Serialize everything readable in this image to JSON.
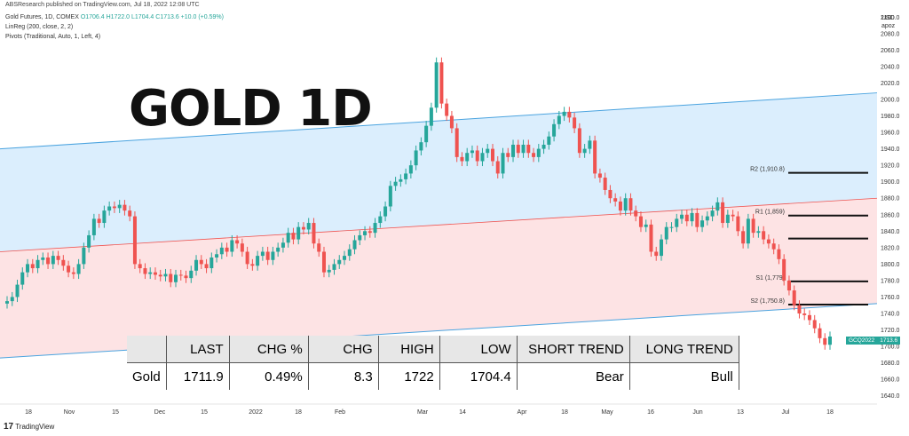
{
  "header": {
    "published": "ABSResearch published on TradingView.com, Jul 18, 2022 12:08 UTC"
  },
  "legend": {
    "symbol": "Gold Futures, 1D, COMEX",
    "ohlc": "O1706.4 H1722.0 L1704.4 C1713.6 +10.0 (+0.59%)",
    "linreg": "LinReg (200, close, 2, 2)",
    "pivots": "Pivots (Traditional, Auto, 1, Left, 4)"
  },
  "overlay_title": "GOLD 1D",
  "axis": {
    "currency": "USD",
    "unit": "apoz",
    "price_badge_symbol": "GCQ2022",
    "price_badge_value": "1713.6"
  },
  "footer": {
    "logo_text": "TradingView"
  },
  "colors": {
    "up": "#26a69a",
    "down": "#ef5350",
    "upper_band": "#dbeefd",
    "lower_band": "#fde3e4",
    "band_line": "#4aa3df"
  },
  "table": {
    "headers": [
      "",
      "LAST",
      "CHG %",
      "CHG",
      "HIGH",
      "LOW",
      "SHORT TREND",
      "LONG TREND"
    ],
    "row": [
      "Gold",
      "1711.9",
      "0.49%",
      "8.3",
      "1722",
      "1704.4",
      "Bear",
      "Bull"
    ]
  },
  "chart_data": {
    "type": "candlestick",
    "title": "Gold Futures, 1D, COMEX",
    "ylim": [
      1630,
      2110
    ],
    "yticks": [
      1640,
      1660,
      1680,
      1700,
      1720,
      1740,
      1760,
      1780,
      1800,
      1820,
      1840,
      1860,
      1880,
      1900,
      1920,
      1940,
      1960,
      1980,
      2000,
      2020,
      2040,
      2060,
      2080,
      2100
    ],
    "xticks": [
      "18",
      "Nov",
      "15",
      "Dec",
      "15",
      "2022",
      "18",
      "Feb",
      "Mar",
      "14",
      "Apr",
      "18",
      "May",
      "16",
      "Jun",
      "13",
      "Jul",
      "18"
    ],
    "pivots": [
      {
        "label": "R2 (1,910.8)",
        "value": 1910.8
      },
      {
        "label": "R1 (1,859)",
        "value": 1859
      },
      {
        "label": "",
        "value": 1831
      },
      {
        "label": "S1 (1,779)",
        "value": 1779
      },
      {
        "label": "S2 (1,750.8)",
        "value": 1750.8
      }
    ],
    "linreg": {
      "start_upper": 1940,
      "end_upper": 2008,
      "start_mid": 1815,
      "end_mid": 1880,
      "start_lower": 1686,
      "end_lower": 1752
    },
    "close_series": [
      1755,
      1760,
      1775,
      1790,
      1800,
      1795,
      1805,
      1808,
      1800,
      1810,
      1805,
      1798,
      1790,
      1788,
      1800,
      1820,
      1835,
      1855,
      1850,
      1865,
      1870,
      1868,
      1872,
      1865,
      1858,
      1800,
      1795,
      1788,
      1790,
      1787,
      1785,
      1788,
      1778,
      1787,
      1786,
      1783,
      1792,
      1805,
      1800,
      1795,
      1808,
      1812,
      1820,
      1815,
      1829,
      1825,
      1815,
      1800,
      1798,
      1810,
      1815,
      1805,
      1815,
      1820,
      1826,
      1838,
      1830,
      1845,
      1842,
      1850,
      1825,
      1815,
      1790,
      1793,
      1800,
      1805,
      1810,
      1818,
      1829,
      1835,
      1840,
      1838,
      1850,
      1858,
      1870,
      1895,
      1900,
      1903,
      1910,
      1920,
      1938,
      1948,
      1968,
      1990,
      2045,
      1995,
      1980,
      1965,
      1930,
      1925,
      1935,
      1938,
      1925,
      1935,
      1940,
      1925,
      1910,
      1935,
      1930,
      1945,
      1935,
      1945,
      1935,
      1930,
      1940,
      1945,
      1955,
      1970,
      1980,
      1985,
      1978,
      1965,
      1935,
      1940,
      1950,
      1910,
      1905,
      1890,
      1880,
      1876,
      1865,
      1880,
      1865,
      1858,
      1845,
      1848,
      1815,
      1810,
      1830,
      1845,
      1845,
      1855,
      1860,
      1852,
      1862,
      1845,
      1853,
      1858,
      1865,
      1875,
      1850,
      1860,
      1858,
      1840,
      1825,
      1855,
      1838,
      1840,
      1830,
      1825,
      1818,
      1806,
      1780,
      1768,
      1750,
      1740,
      1738,
      1732,
      1722,
      1710,
      1702,
      1712
    ]
  }
}
